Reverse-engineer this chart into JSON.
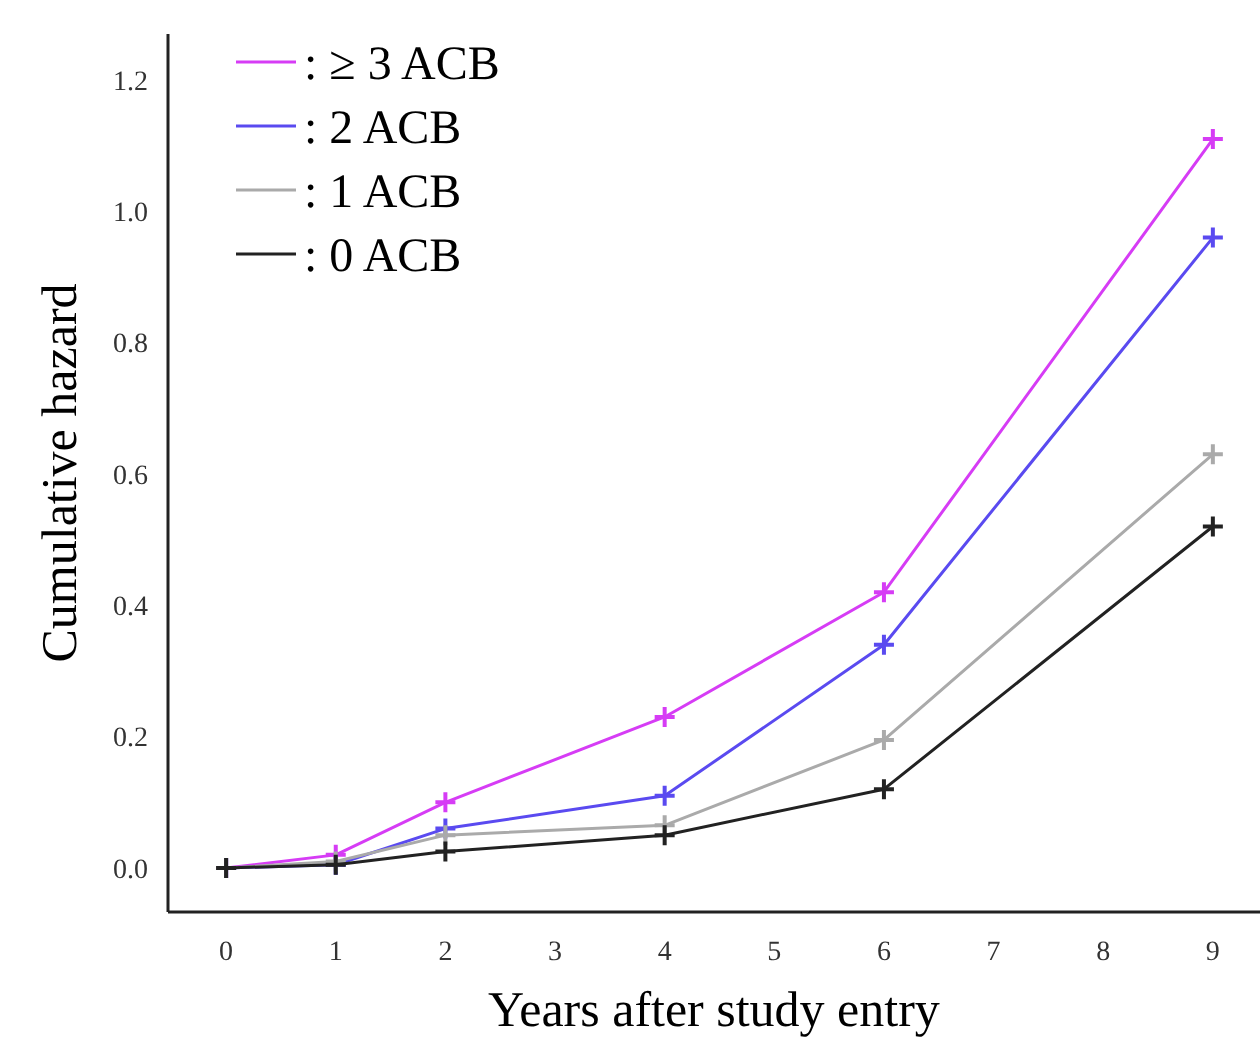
{
  "chart_data": {
    "type": "line",
    "xlabel": "Years after study entry",
    "ylabel": "Cumulative hazard",
    "x": [
      0,
      1,
      2,
      4,
      6,
      9
    ],
    "series": [
      {
        "name": ": ≥ 3 ACB",
        "color": "#d63cf5",
        "values": [
          0,
          0.02,
          0.1,
          0.23,
          0.42,
          1.11
        ]
      },
      {
        "name": ": 2 ACB",
        "color": "#5a4af0",
        "values": [
          0,
          0.005,
          0.06,
          0.11,
          0.34,
          0.96
        ]
      },
      {
        "name": ": 1 ACB",
        "color": "#aaaaaa",
        "values": [
          0,
          0.01,
          0.05,
          0.065,
          0.195,
          0.63
        ]
      },
      {
        "name": ": 0 ACB",
        "color": "#222222",
        "values": [
          0,
          0.005,
          0.025,
          0.05,
          0.12,
          0.52
        ]
      }
    ],
    "xlim": [
      -0.53,
      9.43
    ],
    "xticks": [
      0,
      1,
      2,
      3,
      4,
      5,
      6,
      7,
      8,
      9
    ],
    "ylim": [
      -0.067,
      1.27
    ],
    "yticks": [
      {
        "value": 0,
        "label": "0.0"
      },
      {
        "value": 0.2,
        "label": "0.2"
      },
      {
        "value": 0.4,
        "label": "0.4"
      },
      {
        "value": 0.6,
        "label": "0.6"
      },
      {
        "value": 0.8,
        "label": "0.8"
      },
      {
        "value": 1,
        "label": "1.0"
      },
      {
        "value": 1.2,
        "label": "1.2"
      }
    ],
    "grid": false,
    "legend": "top left",
    "marker": "cross",
    "line_style": "solid"
  }
}
